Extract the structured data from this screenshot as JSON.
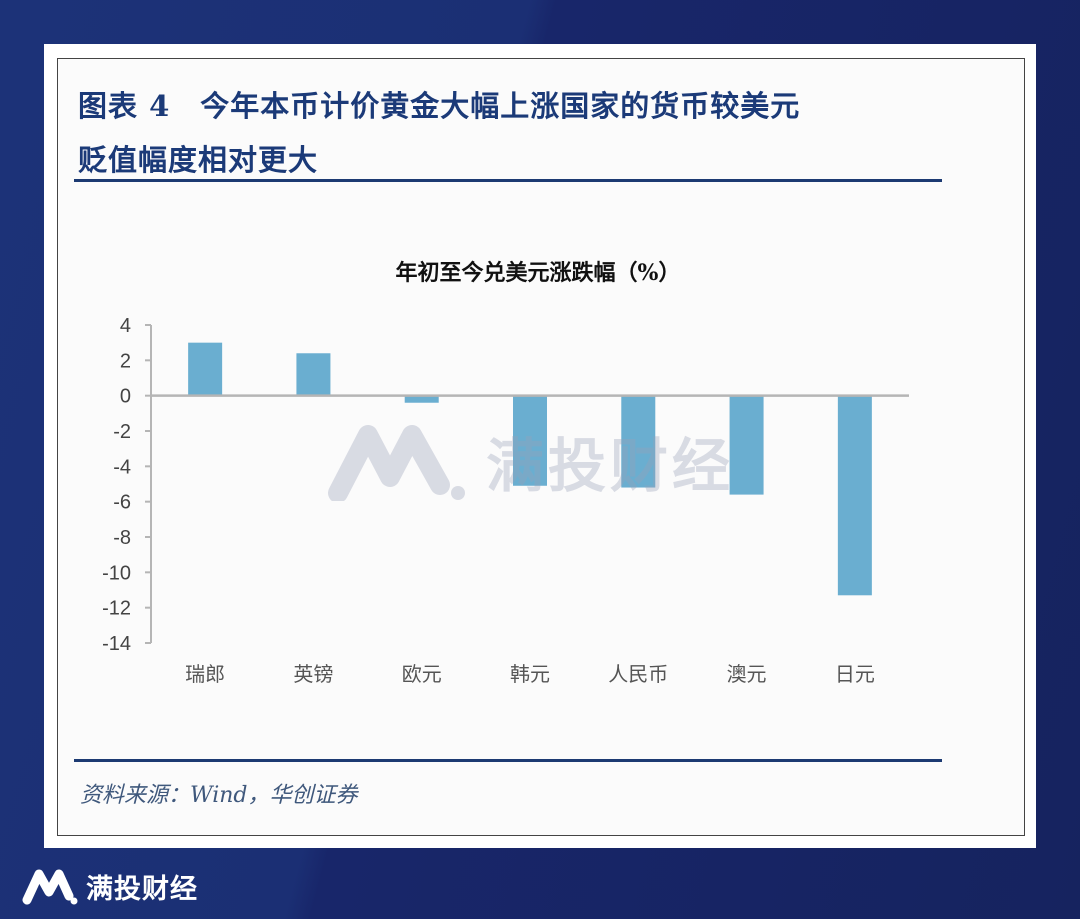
{
  "figure": {
    "title_line1": "图表 4　今年本币计价黄金大幅上涨国家的货币较美元",
    "title_line2": "贬值幅度相对更大",
    "source": "资料来源：Wind，华创证券"
  },
  "brand": {
    "name": "满投财经",
    "watermark": "满投财经"
  },
  "colors": {
    "bar": "#6aaed0",
    "title": "#1b3a78",
    "background": "#16235f"
  },
  "chart_data": {
    "type": "bar",
    "title": "年初至今兑美元涨跌幅（%）",
    "categories": [
      "瑞郎",
      "英镑",
      "欧元",
      "韩元",
      "人民币",
      "澳元",
      "日元"
    ],
    "values": [
      3.0,
      2.4,
      -0.4,
      -5.1,
      -5.2,
      -5.6,
      -11.3
    ],
    "xlabel": "",
    "ylabel": "",
    "ylim": [
      -14,
      4
    ],
    "yticks": [
      "4",
      "2",
      "0",
      "-2",
      "-4",
      "-6",
      "-8",
      "-10",
      "-12",
      "-14"
    ],
    "grid": false,
    "legend": "none"
  }
}
